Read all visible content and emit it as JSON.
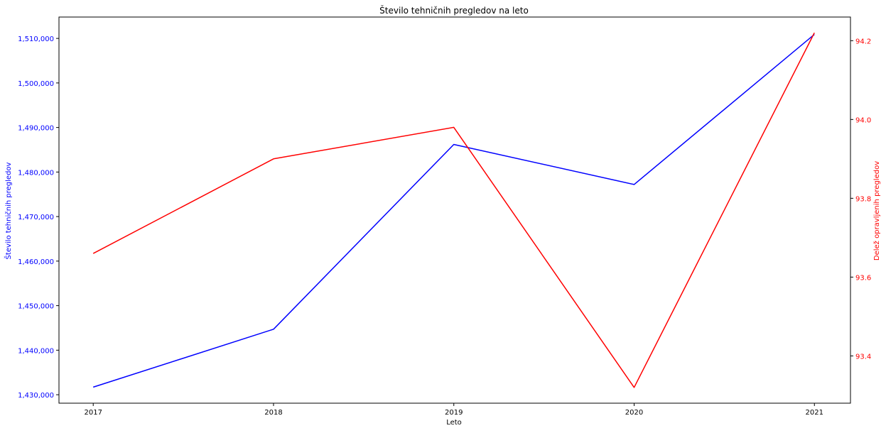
{
  "chart_data": {
    "type": "line",
    "title": "Število tehničnih pregledov na leto",
    "xlabel": "Leto",
    "ylabel_left": "Število tehničnih pregledov",
    "ylabel_right": "Delež opravljenih pregledov",
    "x": [
      2017,
      2018,
      2019,
      2020,
      2021
    ],
    "x_tick_labels": [
      "2017",
      "2018",
      "2019",
      "2020",
      "2021"
    ],
    "xlim": [
      2016.81,
      2021.2
    ],
    "left_ylim": [
      1428100,
      1514800
    ],
    "right_ylim": [
      93.28,
      94.26
    ],
    "left_y_ticks": [
      1430000,
      1440000,
      1450000,
      1460000,
      1470000,
      1480000,
      1490000,
      1500000,
      1510000
    ],
    "left_y_tick_labels": [
      "1,430,000",
      "1,440,000",
      "1,450,000",
      "1,460,000",
      "1,470,000",
      "1,480,000",
      "1,490,000",
      "1,500,000",
      "1,510,000"
    ],
    "right_y_ticks": [
      93.4,
      93.6,
      93.8,
      94.0,
      94.2
    ],
    "right_y_tick_labels": [
      "93.4",
      "93.6",
      "93.8",
      "94.0",
      "94.2"
    ],
    "grid": false,
    "series": [
      {
        "axis": "left",
        "color": "#0000ff",
        "values": [
          1431700,
          1444700,
          1486200,
          1477200,
          1510900
        ]
      },
      {
        "axis": "right",
        "color": "#ff0000",
        "values": [
          93.66,
          93.9,
          93.98,
          93.32,
          94.22
        ]
      }
    ]
  }
}
